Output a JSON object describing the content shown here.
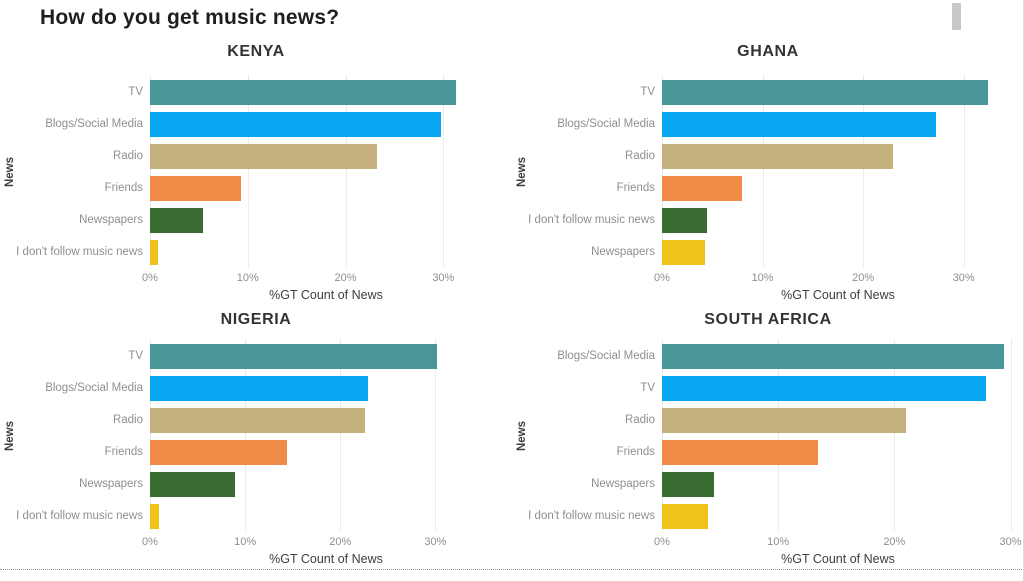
{
  "page": {
    "title": "How do you get music news?"
  },
  "colors": {
    "teal": "#489698",
    "blue": "#09a7f3",
    "tan": "#c4b07c",
    "orange": "#f08c48",
    "green": "#3a6b33",
    "yellow": "#efc31a",
    "scrollbar_thumb": "#c8c8c8",
    "category_label": "#8f8f8f",
    "gridline": "#d8d8d8"
  },
  "chart_data": [
    {
      "type": "bar",
      "orientation": "horizontal",
      "title": "KENYA",
      "xlabel": "%GT Count of News",
      "ylabel": "News",
      "xlim": [
        0,
        36
      ],
      "ticks": [
        0,
        10,
        20,
        30
      ],
      "tick_labels": [
        "0%",
        "10%",
        "20%",
        "30%"
      ],
      "grid": "dotted-vertical",
      "bars": [
        {
          "label": "TV",
          "value": 31.3,
          "color": "#489698"
        },
        {
          "label": "Blogs/Social Media",
          "value": 29.8,
          "color": "#09a7f3"
        },
        {
          "label": "Radio",
          "value": 23.2,
          "color": "#c4b07c"
        },
        {
          "label": "Friends",
          "value": 9.3,
          "color": "#f08c48"
        },
        {
          "label": "Newspapers",
          "value": 5.4,
          "color": "#3a6b33"
        },
        {
          "label": "I don't follow music news",
          "value": 0.8,
          "color": "#efc31a"
        }
      ]
    },
    {
      "type": "bar",
      "orientation": "horizontal",
      "title": "GHANA",
      "xlabel": "%GT Count of News",
      "ylabel": "News",
      "xlim": [
        0,
        35
      ],
      "ticks": [
        0,
        10,
        20,
        30
      ],
      "tick_labels": [
        "0%",
        "10%",
        "20%",
        "30%"
      ],
      "grid": "dotted-vertical",
      "bars": [
        {
          "label": "TV",
          "value": 32.4,
          "color": "#489698"
        },
        {
          "label": "Blogs/Social Media",
          "value": 27.2,
          "color": "#09a7f3"
        },
        {
          "label": "Radio",
          "value": 23.0,
          "color": "#c4b07c"
        },
        {
          "label": "Friends",
          "value": 8.0,
          "color": "#f08c48"
        },
        {
          "label": "I don't follow music news",
          "value": 4.5,
          "color": "#3a6b33"
        },
        {
          "label": "Newspapers",
          "value": 4.3,
          "color": "#efc31a"
        }
      ]
    },
    {
      "type": "bar",
      "orientation": "horizontal",
      "title": "NIGERIA",
      "xlabel": "%GT Count of News",
      "ylabel": "News",
      "xlim": [
        0,
        37
      ],
      "ticks": [
        0,
        10,
        20,
        30
      ],
      "tick_labels": [
        "0%",
        "10%",
        "20%",
        "30%"
      ],
      "grid": "dotted-vertical",
      "bars": [
        {
          "label": "TV",
          "value": 30.2,
          "color": "#489698"
        },
        {
          "label": "Blogs/Social Media",
          "value": 22.9,
          "color": "#09a7f3"
        },
        {
          "label": "Radio",
          "value": 22.6,
          "color": "#c4b07c"
        },
        {
          "label": "Friends",
          "value": 14.4,
          "color": "#f08c48"
        },
        {
          "label": "Newspapers",
          "value": 8.9,
          "color": "#3a6b33"
        },
        {
          "label": "I don't follow music news",
          "value": 0.9,
          "color": "#efc31a"
        }
      ]
    },
    {
      "type": "bar",
      "orientation": "horizontal",
      "title": "SOUTH AFRICA",
      "xlabel": "%GT Count of News",
      "ylabel": "News",
      "xlim": [
        0,
        30.3
      ],
      "ticks": [
        0,
        10,
        20,
        30
      ],
      "tick_labels": [
        "0%",
        "10%",
        "20%",
        "30%"
      ],
      "grid": "dotted-vertical",
      "bars": [
        {
          "label": "Blogs/Social Media",
          "value": 29.4,
          "color": "#489698"
        },
        {
          "label": "TV",
          "value": 27.9,
          "color": "#09a7f3"
        },
        {
          "label": "Radio",
          "value": 21.0,
          "color": "#c4b07c"
        },
        {
          "label": "Friends",
          "value": 13.4,
          "color": "#f08c48"
        },
        {
          "label": "Newspapers",
          "value": 4.5,
          "color": "#3a6b33"
        },
        {
          "label": "I don't follow music news",
          "value": 4.0,
          "color": "#efc31a"
        }
      ]
    }
  ]
}
